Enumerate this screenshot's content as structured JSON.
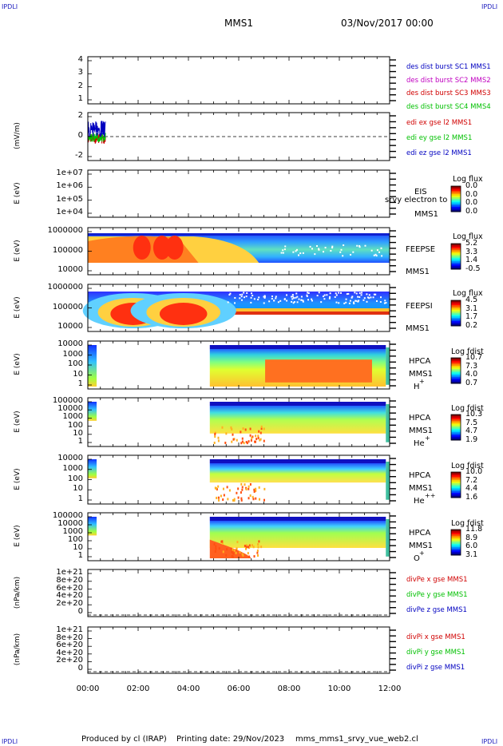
{
  "corner_labels": [
    "IPDLI",
    "IPDLI",
    "IPDLI",
    "IPDLI"
  ],
  "header": {
    "spacecraft": "MMS1",
    "datetime": "03/Nov/2017 00:00"
  },
  "footer": {
    "producer": "Produced by cl (IRAP)",
    "printing": "Printing date: 29/Nov/2023",
    "script": "mms_mms1_srvy_vue_web2.cl"
  },
  "x_axis": {
    "ticks": [
      "00:00",
      "02:00",
      "04:00",
      "06:00",
      "08:00",
      "10:00",
      "12:00"
    ]
  },
  "chart_data": [
    {
      "id": "p1",
      "type": "line",
      "ylabel": "",
      "ylim": [
        0.5,
        4.5
      ],
      "ytick_labels": [
        "4",
        "3",
        "2",
        "1"
      ],
      "legend": [
        {
          "text": "des dist burst SC1 MMS1",
          "color": "#0000c0"
        },
        {
          "text": "des dist burst SC2 MMS2",
          "color": "#c000c0"
        },
        {
          "text": "des dist burst SC3 MMS3",
          "color": "#d00000"
        },
        {
          "text": "des dist burst SC4 MMS4",
          "color": "#00c000"
        }
      ]
    },
    {
      "id": "p2",
      "type": "line",
      "ylabel": "(mV/m)",
      "ylim": [
        -3,
        3
      ],
      "ytick_labels": [
        "2",
        "0",
        "-2"
      ],
      "x_range_hours": [
        0.0,
        0.7
      ],
      "legend": [
        {
          "text": "edi ex gse l2 MMS1",
          "color": "#d00000"
        },
        {
          "text": "edi ey gse l2 MMS1",
          "color": "#00c000"
        },
        {
          "text": "edi ez gse l2 MMS1",
          "color": "#0000c0"
        }
      ]
    },
    {
      "id": "p3",
      "type": "heatmap",
      "ylabel": "E (eV)",
      "ytick_labels": [
        "1e+07",
        "1e+06",
        "1e+05",
        "1e+04"
      ],
      "instrument": [
        "EIS",
        "MMS1"
      ],
      "overlay": "srvy electron to",
      "colorbar_title": "Log flux",
      "colorbar_values": [
        "0.0",
        "0.0",
        "0.0",
        "0.0"
      ]
    },
    {
      "id": "p4",
      "type": "heatmap",
      "ylabel": "E (eV)",
      "ytick_labels": [
        "1000000",
        "100000",
        "10000"
      ],
      "instrument": [
        "FEEPSE",
        "MMS1"
      ],
      "colorbar_title": "Log flux",
      "colorbar_values": [
        "5.2",
        "3.3",
        "1.4",
        "-0.5"
      ]
    },
    {
      "id": "p5",
      "type": "heatmap",
      "ylabel": "E (eV)",
      "ytick_labels": [
        "1000000",
        "100000",
        "10000"
      ],
      "instrument": [
        "FEEPSI",
        "MMS1"
      ],
      "colorbar_title": "Log flux",
      "colorbar_values": [
        "4.5",
        "3.1",
        "1.7",
        "0.2"
      ]
    },
    {
      "id": "p6",
      "type": "heatmap",
      "ylabel": "E (eV)",
      "ytick_labels": [
        "10000",
        "1000",
        "100",
        "10",
        "1"
      ],
      "instrument": [
        "HPCA",
        "MMS1"
      ],
      "species": "H",
      "species_sup": "+",
      "colorbar_title": "Log fdist",
      "colorbar_values": [
        "10.7",
        "7.3",
        "4.0",
        "0.7"
      ]
    },
    {
      "id": "p7",
      "type": "heatmap",
      "ylabel": "E (eV)",
      "ytick_labels": [
        "100000",
        "10000",
        "1000",
        "100",
        "10",
        "1"
      ],
      "instrument": [
        "HPCA",
        "MMS1"
      ],
      "species": "He",
      "species_sup": "+",
      "colorbar_title": "Log fdist",
      "colorbar_values": [
        "10.3",
        "7.5",
        "4.7",
        "1.9"
      ]
    },
    {
      "id": "p8",
      "type": "heatmap",
      "ylabel": "E (eV)",
      "ytick_labels": [
        "10000",
        "1000",
        "100",
        "10",
        "1"
      ],
      "instrument": [
        "HPCA",
        "MMS1"
      ],
      "species": "He",
      "species_sup": "++",
      "colorbar_title": "Log fdist",
      "colorbar_values": [
        "10.0",
        "7.2",
        "4.4",
        "1.6"
      ]
    },
    {
      "id": "p9",
      "type": "heatmap",
      "ylabel": "E (eV)",
      "ytick_labels": [
        "100000",
        "10000",
        "1000",
        "100",
        "10",
        "1"
      ],
      "instrument": [
        "HPCA",
        "MMS1"
      ],
      "species": "O",
      "species_sup": "+",
      "colorbar_title": "Log fdist",
      "colorbar_values": [
        "11.8",
        "8.9",
        "6.0",
        "3.1"
      ]
    },
    {
      "id": "p10",
      "type": "line",
      "ylabel": "(nPa/km)",
      "ytick_labels": [
        "1e+21",
        "8e+20",
        "6e+20",
        "4e+20",
        "2e+20",
        "0"
      ],
      "legend": [
        {
          "text": "divPe x gse MMS1",
          "color": "#d00000"
        },
        {
          "text": "divPe y gse MMS1",
          "color": "#00c000"
        },
        {
          "text": "divPe z gse MMS1",
          "color": "#0000c0"
        }
      ]
    },
    {
      "id": "p11",
      "type": "line",
      "ylabel": "(nPa/km)",
      "ytick_labels": [
        "1e+21",
        "8e+20",
        "6e+20",
        "4e+20",
        "2e+20",
        "0"
      ],
      "legend": [
        {
          "text": "divPi x gse MMS1",
          "color": "#d00000"
        },
        {
          "text": "divPi y gse MMS1",
          "color": "#00c000"
        },
        {
          "text": "divPi z gse MMS1",
          "color": "#0000c0"
        }
      ]
    }
  ]
}
